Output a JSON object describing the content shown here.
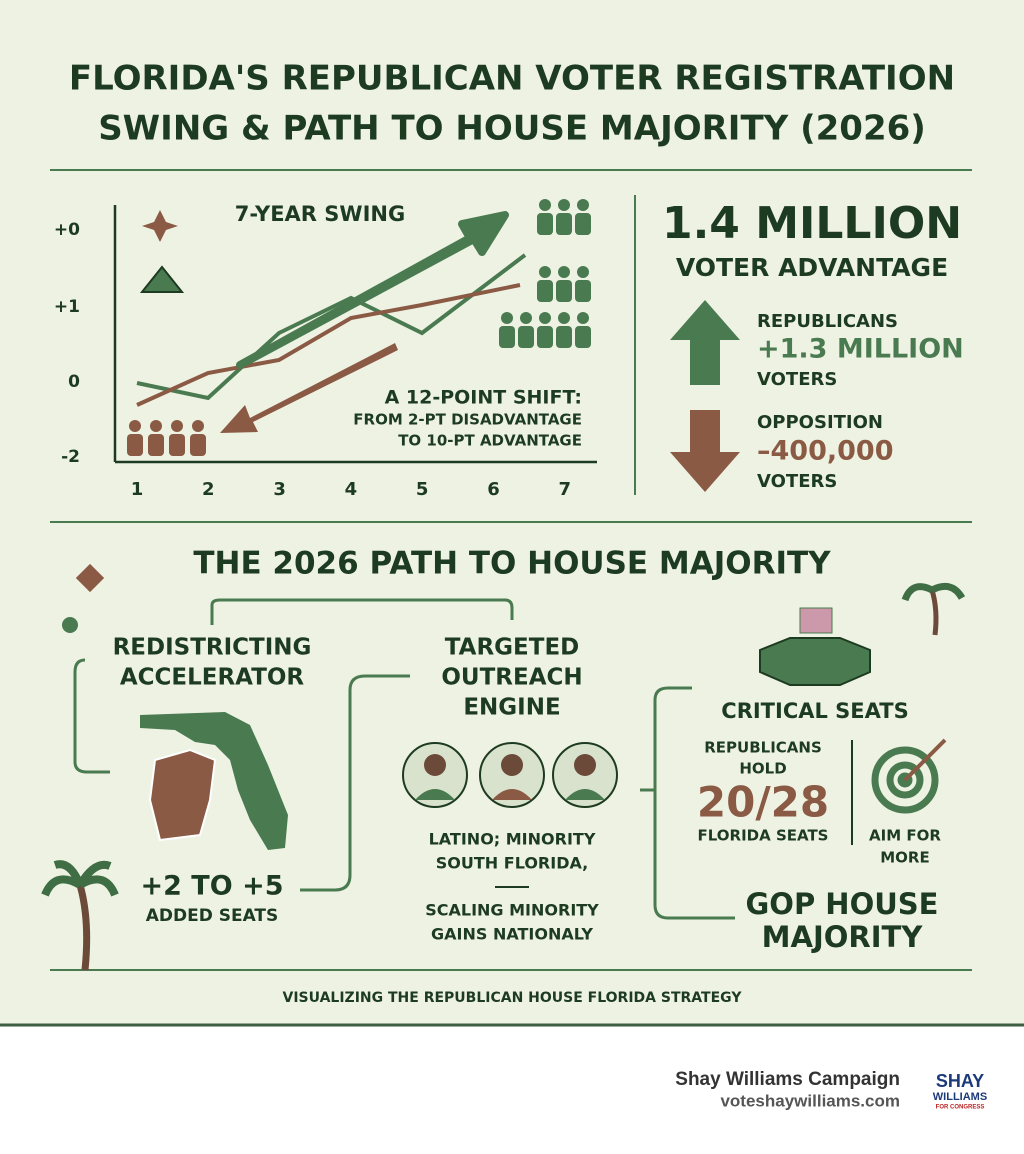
{
  "title": [
    "FLORIDA'S REPUBLICAN VOTER REGISTRATION",
    "SWING & PATH TO HOUSE MAJORITY (2026)"
  ],
  "swing": {
    "title": "7-YEAR SWING",
    "y_labels": [
      "+0",
      "+1",
      "0",
      "-2"
    ],
    "x_labels": [
      "1",
      "2",
      "3",
      "4",
      "5",
      "6",
      "7"
    ],
    "annotation": [
      "A 12-POINT SHIFT:",
      "FROM 2-PT DISADVANTAGE",
      "TO 10-PT ADVANTAGE"
    ]
  },
  "advantage": {
    "headline": "1.4 MILLION",
    "subhead": "VOTER ADVANTAGE",
    "republicans": {
      "label": "REPUBLICANS",
      "value": "+1.3 MILLION",
      "unit": "VOTERS"
    },
    "opposition": {
      "label": "OPPOSITION",
      "value": "–400,000",
      "unit": "VOTERS"
    }
  },
  "path": {
    "title": "THE 2026 PATH TO HOUSE MAJORITY",
    "redistricting": {
      "title": [
        "REDISTRICTING",
        "ACCELERATOR"
      ],
      "seats": "+2 TO +5",
      "seats_label": "ADDED SEATS"
    },
    "outreach": {
      "title": [
        "TARGETED",
        "OUTREACH",
        "ENGINE"
      ],
      "focus": [
        "LATINO; MINORITY",
        "SOUTH FLORIDA,"
      ],
      "scale": [
        "SCALING MINORITY",
        "GAINS NATIONALY"
      ]
    },
    "critical": {
      "title": "CRITICAL SEATS",
      "hold": [
        "REPUBLICANS",
        "HOLD"
      ],
      "figure": "20/28",
      "figure_label": "FLORIDA SEATS",
      "aim": [
        "AIM FOR",
        "MORE"
      ]
    },
    "majority": [
      "GOP HOUSE",
      "MAJORITY"
    ]
  },
  "caption": "VISUALIZING THE REPUBLICAN HOUSE FLORIDA STRATEGY",
  "footer": {
    "name": "Shay Williams Campaign",
    "url": "voteshaywilliams.com",
    "logo": [
      "SHAY",
      "WILLIAMS",
      "FOR CONGRESS"
    ]
  }
}
